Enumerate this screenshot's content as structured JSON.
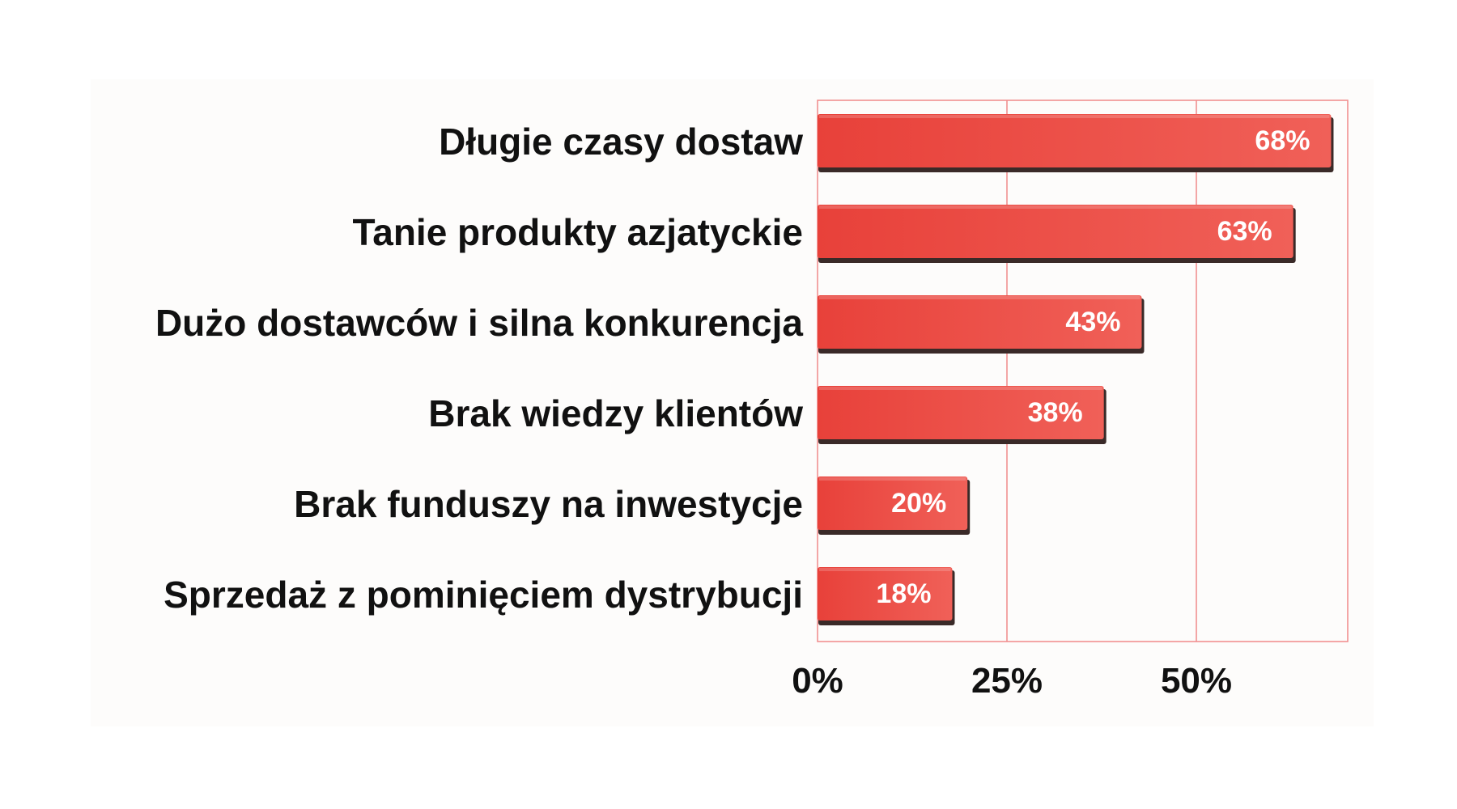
{
  "chart_data": {
    "type": "bar",
    "orientation": "horizontal",
    "categories": [
      "Długie czasy dostaw",
      "Tanie produkty azjatyckie",
      "Dużo dostawców i silna konkurencja",
      "Brak wiedzy klientów",
      "Brak funduszy na inwestycje",
      "Sprzedaż z pominięciem dystrybucji"
    ],
    "values": [
      68,
      63,
      43,
      38,
      20,
      18
    ],
    "value_labels": [
      "68%",
      "63%",
      "43%",
      "38%",
      "20%",
      "18%"
    ],
    "x_ticks": [
      0,
      25,
      50
    ],
    "x_tick_labels": [
      "0%",
      "25%",
      "50%"
    ],
    "xlim": [
      0,
      70
    ],
    "grid": true,
    "colors": {
      "bar": "#e8413a",
      "bar_light": "#f06058",
      "bar_shadow": "#3a2a28",
      "gridline": "#f08a8a",
      "panel": "#fdfcfb"
    }
  }
}
